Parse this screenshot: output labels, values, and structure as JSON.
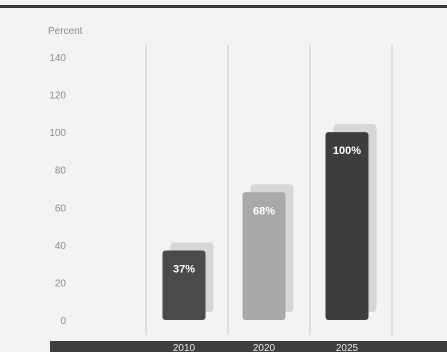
{
  "chart_data": {
    "type": "bar",
    "title": "",
    "ylabel": "Percent",
    "xlabel": "",
    "ylim": [
      0,
      140
    ],
    "yticks": [
      0,
      20,
      40,
      60,
      80,
      100,
      120,
      140
    ],
    "categories": [
      "2010",
      "2020",
      "2025"
    ],
    "values": [
      37,
      68,
      100
    ],
    "data_labels": [
      "37%",
      "68%",
      "100%"
    ],
    "bar_colors": [
      "#4a4a4a",
      "#a8a8a8",
      "#3d3d3d"
    ],
    "grid": true,
    "legend": "none"
  }
}
